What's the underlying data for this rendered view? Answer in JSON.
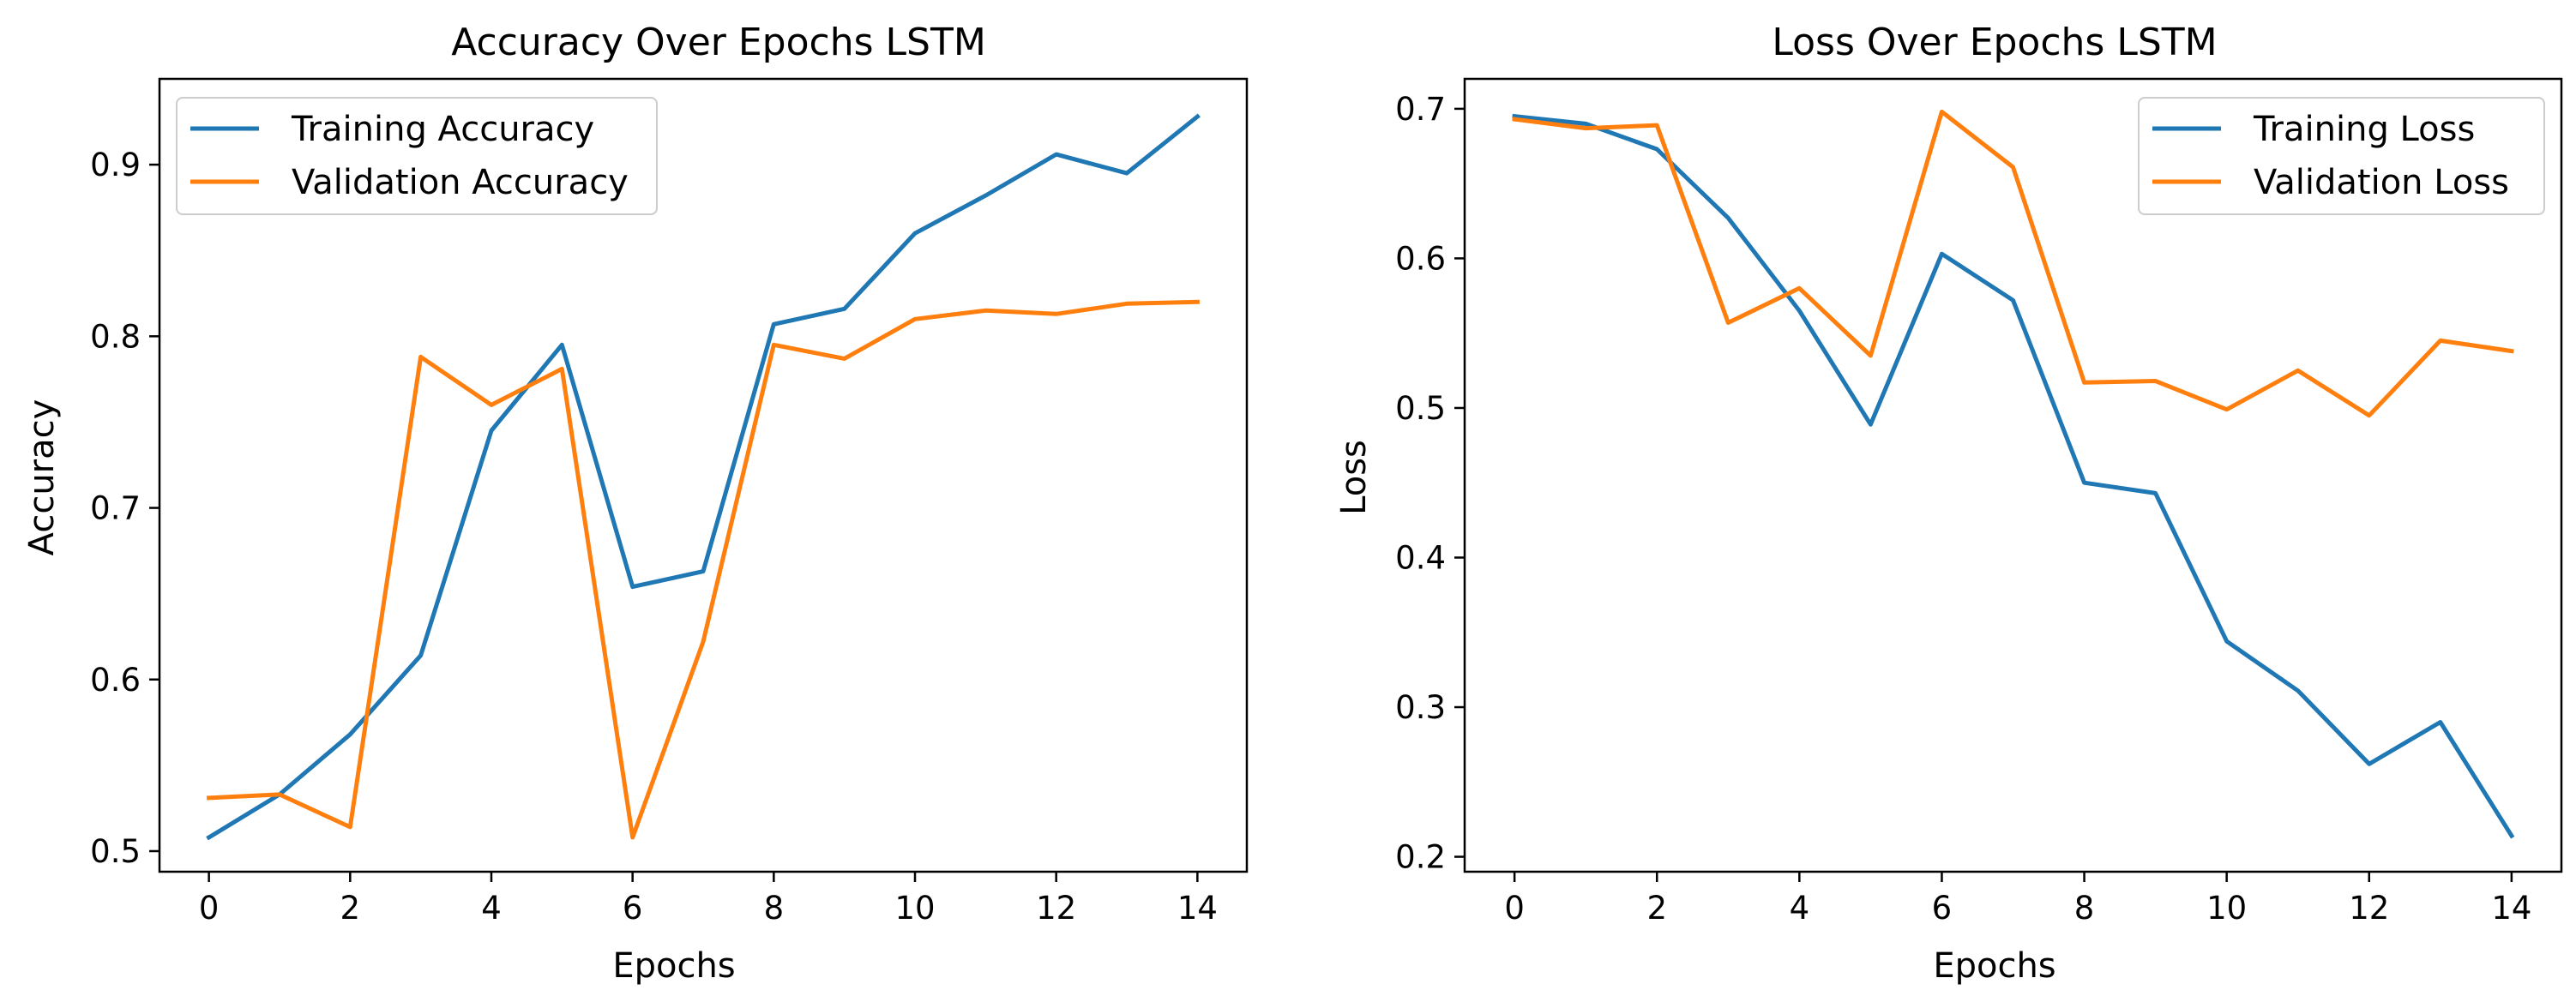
{
  "colors": {
    "training": "#1f77b4",
    "validation": "#ff7f0e",
    "axes": "#000000",
    "legend_border": "#cccccc"
  },
  "chart_data": [
    {
      "type": "line",
      "title": "Accuracy Over Epochs LSTM",
      "xlabel": "Epochs",
      "ylabel": "Accuracy",
      "x": [
        0,
        1,
        2,
        3,
        4,
        5,
        6,
        7,
        8,
        9,
        10,
        11,
        12,
        13,
        14
      ],
      "xlim": [
        -0.7,
        14.7
      ],
      "ylim": [
        0.488,
        0.95
      ],
      "xticks": [
        0,
        2,
        4,
        6,
        8,
        10,
        12,
        14
      ],
      "yticks": [
        0.5,
        0.6,
        0.7,
        0.8,
        0.9
      ],
      "ytick_labels": [
        "0.5",
        "0.6",
        "0.7",
        "0.8",
        "0.9"
      ],
      "grid": false,
      "legend_position": "top-left",
      "series": [
        {
          "name": "Training Accuracy",
          "color": "#1f77b4",
          "values": [
            0.508,
            0.533,
            0.568,
            0.614,
            0.745,
            0.795,
            0.654,
            0.663,
            0.807,
            0.816,
            0.86,
            0.882,
            0.906,
            0.895,
            0.928
          ]
        },
        {
          "name": "Validation Accuracy",
          "color": "#ff7f0e",
          "values": [
            0.531,
            0.533,
            0.514,
            0.788,
            0.76,
            0.781,
            0.508,
            0.622,
            0.795,
            0.787,
            0.81,
            0.815,
            0.813,
            0.819,
            0.82
          ]
        }
      ]
    },
    {
      "type": "line",
      "title": "Loss Over Epochs LSTM",
      "xlabel": "Epochs",
      "ylabel": "Loss",
      "x": [
        0,
        1,
        2,
        3,
        4,
        5,
        6,
        7,
        8,
        9,
        10,
        11,
        12,
        13,
        14
      ],
      "xlim": [
        -0.7,
        14.7
      ],
      "ylim": [
        0.19,
        0.72
      ],
      "xticks": [
        0,
        2,
        4,
        6,
        8,
        10,
        12,
        14
      ],
      "yticks": [
        0.2,
        0.3,
        0.4,
        0.5,
        0.6,
        0.7
      ],
      "ytick_labels": [
        "0.2",
        "0.3",
        "0.4",
        "0.5",
        "0.6",
        "0.7"
      ],
      "grid": false,
      "legend_position": "top-right",
      "series": [
        {
          "name": "Training Loss",
          "color": "#1f77b4",
          "values": [
            0.695,
            0.69,
            0.673,
            0.627,
            0.565,
            0.489,
            0.603,
            0.572,
            0.45,
            0.443,
            0.344,
            0.311,
            0.262,
            0.29,
            0.214
          ]
        },
        {
          "name": "Validation Loss",
          "color": "#ff7f0e",
          "values": [
            0.693,
            0.687,
            0.689,
            0.557,
            0.58,
            0.535,
            0.698,
            0.661,
            0.517,
            0.518,
            0.499,
            0.525,
            0.495,
            0.545,
            0.538
          ]
        }
      ]
    }
  ]
}
